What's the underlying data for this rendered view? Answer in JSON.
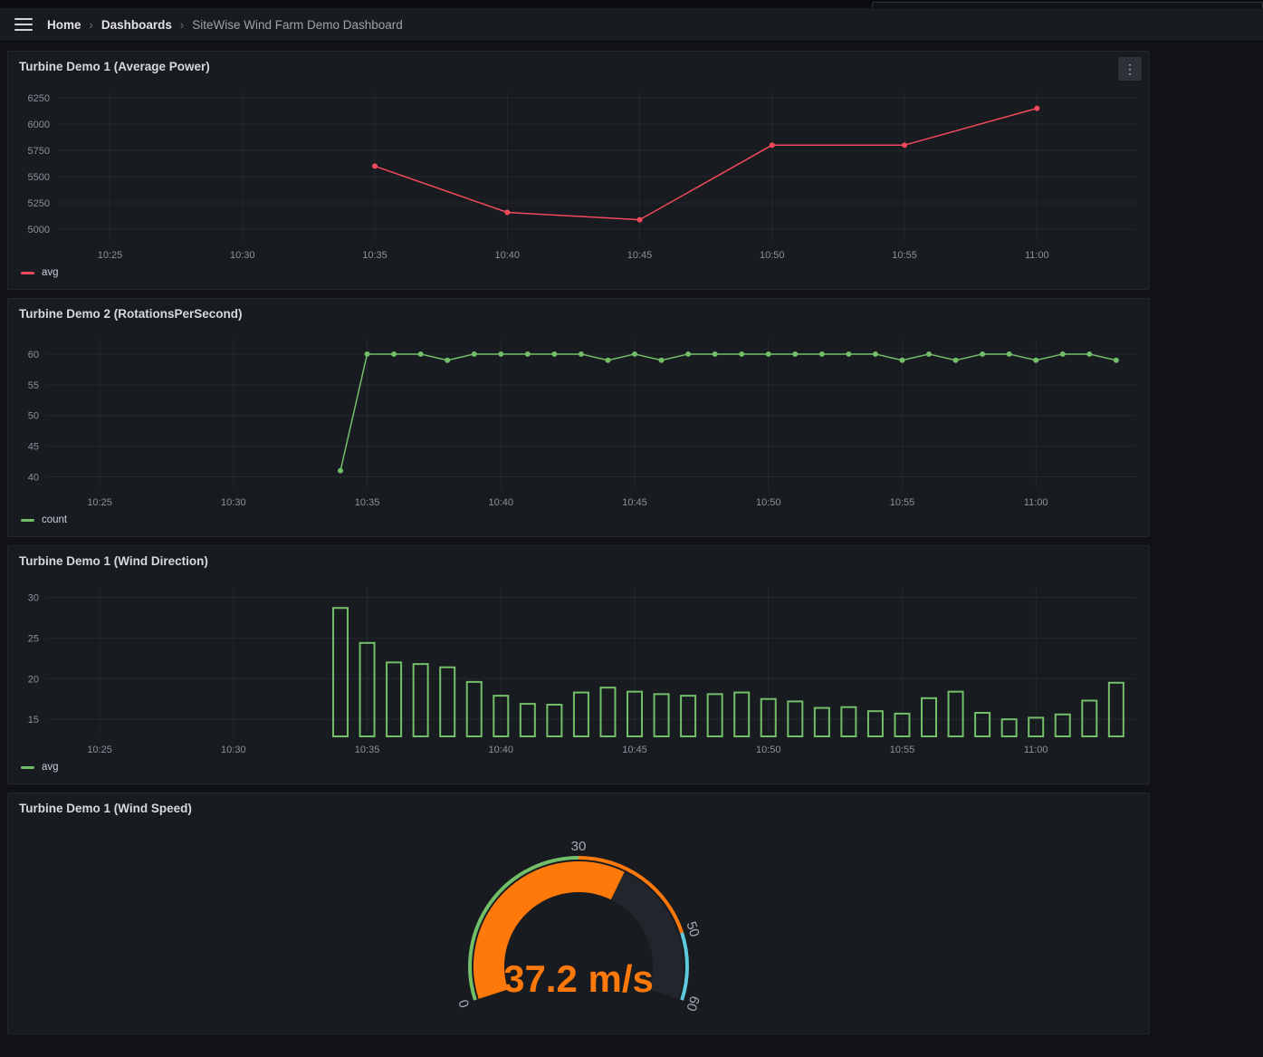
{
  "breadcrumb": {
    "items": [
      "Home",
      "Dashboards",
      "SiteWise Wind Farm Demo Dashboard"
    ],
    "separator": "›"
  },
  "icons": {
    "kebab": "⋮"
  },
  "theme": {
    "page_bg": "#111217",
    "panel_bg": "#181b1f",
    "grid_color": "rgba(204,204,220,0.07)",
    "tick_color": "rgba(204,204,220,0.65)",
    "gauge_label_color": "rgba(204,204,220,0.8)",
    "red": "#F2495C",
    "green": "#73BF69",
    "orange": "#FF780A",
    "cyan": "#5EC9DC"
  },
  "chart_data": [
    {
      "type": "line",
      "title": "Turbine Demo 1 (Average Power)",
      "x_unit": "minutes since 10:00",
      "xlim": [
        23,
        63.75
      ],
      "ylim": [
        4880,
        6310
      ],
      "y_ticks": [
        5000,
        5250,
        5500,
        5750,
        6000,
        6250
      ],
      "x_ticks": [
        {
          "v": 25,
          "label": "10:25"
        },
        {
          "v": 30,
          "label": "10:30"
        },
        {
          "v": 35,
          "label": "10:35"
        },
        {
          "v": 40,
          "label": "10:40"
        },
        {
          "v": 45,
          "label": "10:45"
        },
        {
          "v": 50,
          "label": "10:50"
        },
        {
          "v": 55,
          "label": "10:55"
        },
        {
          "v": 60,
          "label": "11:00"
        }
      ],
      "series": [
        {
          "name": "avg",
          "color": "#F2495C",
          "x": [
            35,
            40,
            45,
            50,
            55,
            60
          ],
          "values": [
            5600,
            5160,
            5090,
            5800,
            5800,
            6150
          ]
        }
      ]
    },
    {
      "type": "line",
      "title": "Turbine Demo 2 (RotationsPerSecond)",
      "x_unit": "minutes since 10:00",
      "xlim": [
        23,
        63.75
      ],
      "ylim": [
        38,
        62.5
      ],
      "y_ticks": [
        40,
        45,
        50,
        55,
        60
      ],
      "x_ticks": [
        {
          "v": 25,
          "label": "10:25"
        },
        {
          "v": 30,
          "label": "10:30"
        },
        {
          "v": 35,
          "label": "10:35"
        },
        {
          "v": 40,
          "label": "10:40"
        },
        {
          "v": 45,
          "label": "10:45"
        },
        {
          "v": 50,
          "label": "10:50"
        },
        {
          "v": 55,
          "label": "10:55"
        },
        {
          "v": 60,
          "label": "11:00"
        }
      ],
      "series": [
        {
          "name": "count",
          "color": "#73BF69",
          "x": [
            34,
            35,
            36,
            37,
            38,
            39,
            40,
            41,
            42,
            43,
            44,
            45,
            46,
            47,
            48,
            49,
            50,
            51,
            52,
            53,
            54,
            55,
            56,
            57,
            58,
            59,
            60,
            61,
            62,
            63
          ],
          "values": [
            41,
            60,
            60,
            60,
            59,
            60,
            60,
            60,
            60,
            60,
            59,
            60,
            59,
            60,
            60,
            60,
            60,
            60,
            60,
            60,
            60,
            59,
            60,
            59,
            60,
            60,
            59,
            60,
            60,
            59
          ]
        }
      ]
    },
    {
      "type": "bar",
      "title": "Turbine Demo 1 (Wind Direction)",
      "x_unit": "minutes since 10:00",
      "xlim": [
        23,
        63.75
      ],
      "ylim": [
        12.9,
        31.4
      ],
      "y_ticks": [
        15,
        20,
        25,
        30
      ],
      "x_ticks": [
        {
          "v": 25,
          "label": "10:25"
        },
        {
          "v": 30,
          "label": "10:30"
        },
        {
          "v": 35,
          "label": "10:35"
        },
        {
          "v": 40,
          "label": "10:40"
        },
        {
          "v": 45,
          "label": "10:45"
        },
        {
          "v": 50,
          "label": "10:50"
        },
        {
          "v": 55,
          "label": "10:55"
        },
        {
          "v": 60,
          "label": "11:00"
        }
      ],
      "series": [
        {
          "name": "avg",
          "color": "#73BF69",
          "x": [
            34,
            35,
            36,
            37,
            38,
            39,
            40,
            41,
            42,
            43,
            44,
            45,
            46,
            47,
            48,
            49,
            50,
            51,
            52,
            53,
            54,
            55,
            56,
            57,
            58,
            59,
            60,
            61,
            62,
            63
          ],
          "values": [
            28.7,
            24.4,
            22.0,
            21.8,
            21.4,
            19.6,
            17.9,
            16.9,
            16.8,
            18.3,
            18.9,
            18.4,
            18.1,
            17.9,
            18.1,
            18.3,
            17.5,
            17.2,
            16.4,
            16.5,
            16.0,
            15.7,
            17.6,
            18.4,
            15.8,
            15.0,
            15.2,
            15.6,
            17.3,
            19.5
          ]
        }
      ]
    },
    {
      "type": "gauge",
      "title": "Turbine Demo 1 (Wind Speed)",
      "value": 37.2,
      "unit": "m/s",
      "display": "37.2 m/s",
      "min": 0,
      "max": 60,
      "tick_labels": [
        0,
        30,
        50,
        60
      ],
      "thresholds": [
        {
          "from": 0,
          "color": "#73BF69"
        },
        {
          "from": 30,
          "color": "#FF780A"
        },
        {
          "from": 50,
          "color": "#5EC9DC"
        }
      ],
      "value_color": "#FF780A",
      "track_color": "#22252b"
    }
  ]
}
